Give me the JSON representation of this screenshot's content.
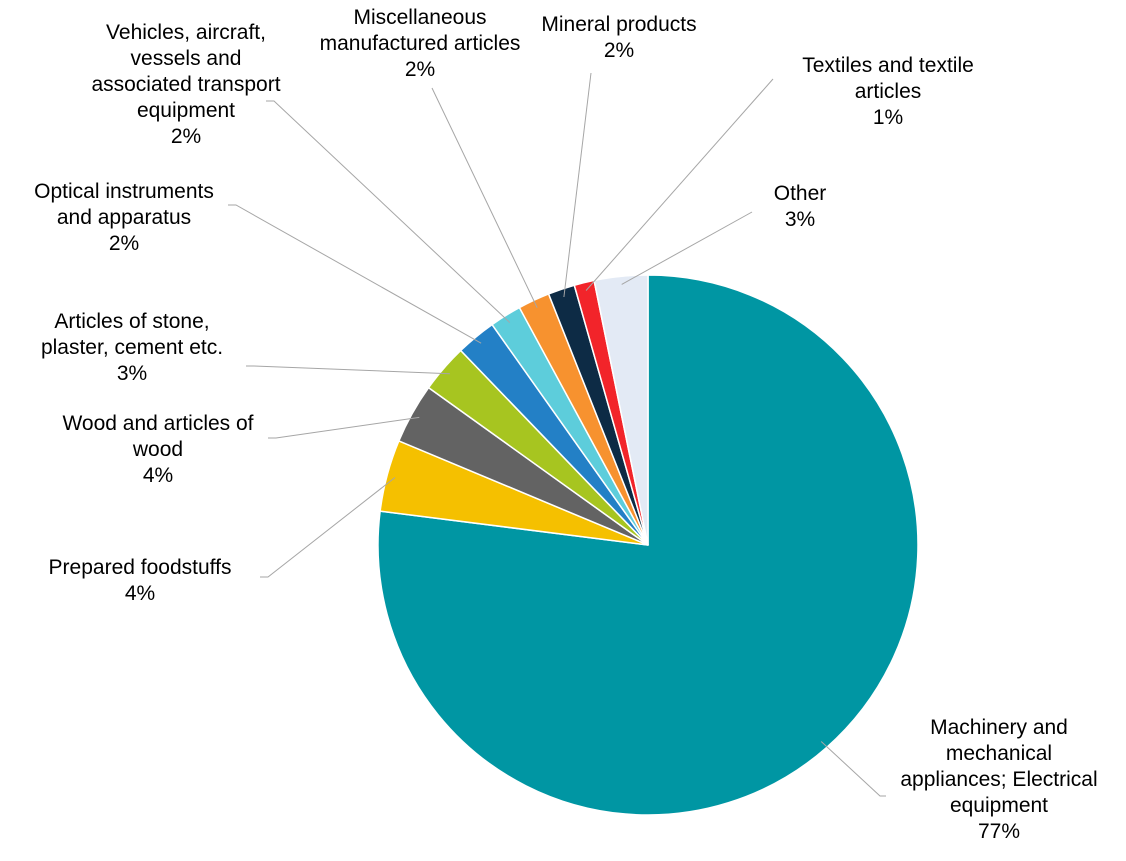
{
  "chart_data": {
    "type": "pie",
    "slices": [
      {
        "label": "Machinery and mechanical appliances; Electrical equipment",
        "lines": [
          "Machinery and",
          "mechanical",
          "appliances; Electrical",
          "equipment"
        ],
        "value": 77,
        "pct_label": "77%",
        "color": "#0096A3"
      },
      {
        "label": "Prepared foodstuffs",
        "lines": [
          "Prepared foodstuffs"
        ],
        "value": 4.3,
        "pct_label": "4%",
        "color": "#F5C000"
      },
      {
        "label": "Wood and articles of wood",
        "lines": [
          "Wood and articles of",
          "wood"
        ],
        "value": 3.6,
        "pct_label": "4%",
        "color": "#636363"
      },
      {
        "label": "Articles of stone, plaster, cement etc.",
        "lines": [
          "Articles of stone,",
          "plaster, cement etc."
        ],
        "value": 2.9,
        "pct_label": "3%",
        "color": "#A7C520"
      },
      {
        "label": "Optical instruments and apparatus",
        "lines": [
          "Optical instruments",
          "and apparatus"
        ],
        "value": 2.4,
        "pct_label": "2%",
        "color": "#2380C6"
      },
      {
        "label": "Vehicles, aircraft, vessels and associated transport equipment",
        "lines": [
          "Vehicles, aircraft,",
          "vessels and",
          "associated transport",
          "equipment"
        ],
        "value": 1.9,
        "pct_label": "2%",
        "color": "#5DCDDB"
      },
      {
        "label": "Miscellaneous manufactured articles",
        "lines": [
          "Miscellaneous",
          "manufactured articles"
        ],
        "value": 1.9,
        "pct_label": "2%",
        "color": "#F7922F"
      },
      {
        "label": "Mineral products",
        "lines": [
          "Mineral products"
        ],
        "value": 1.6,
        "pct_label": "2%",
        "color": "#0D2B45"
      },
      {
        "label": "Textiles and textile articles",
        "lines": [
          "Textiles and textile",
          "articles"
        ],
        "value": 1.2,
        "pct_label": "1%",
        "color": "#F2242A"
      },
      {
        "label": "Other",
        "lines": [
          "Other"
        ],
        "value": 3.2,
        "pct_label": "3%",
        "color": "#E3EAF5"
      }
    ],
    "start_angle": "12 o'clock",
    "direction": "clockwise",
    "legend": "none",
    "title": ""
  }
}
